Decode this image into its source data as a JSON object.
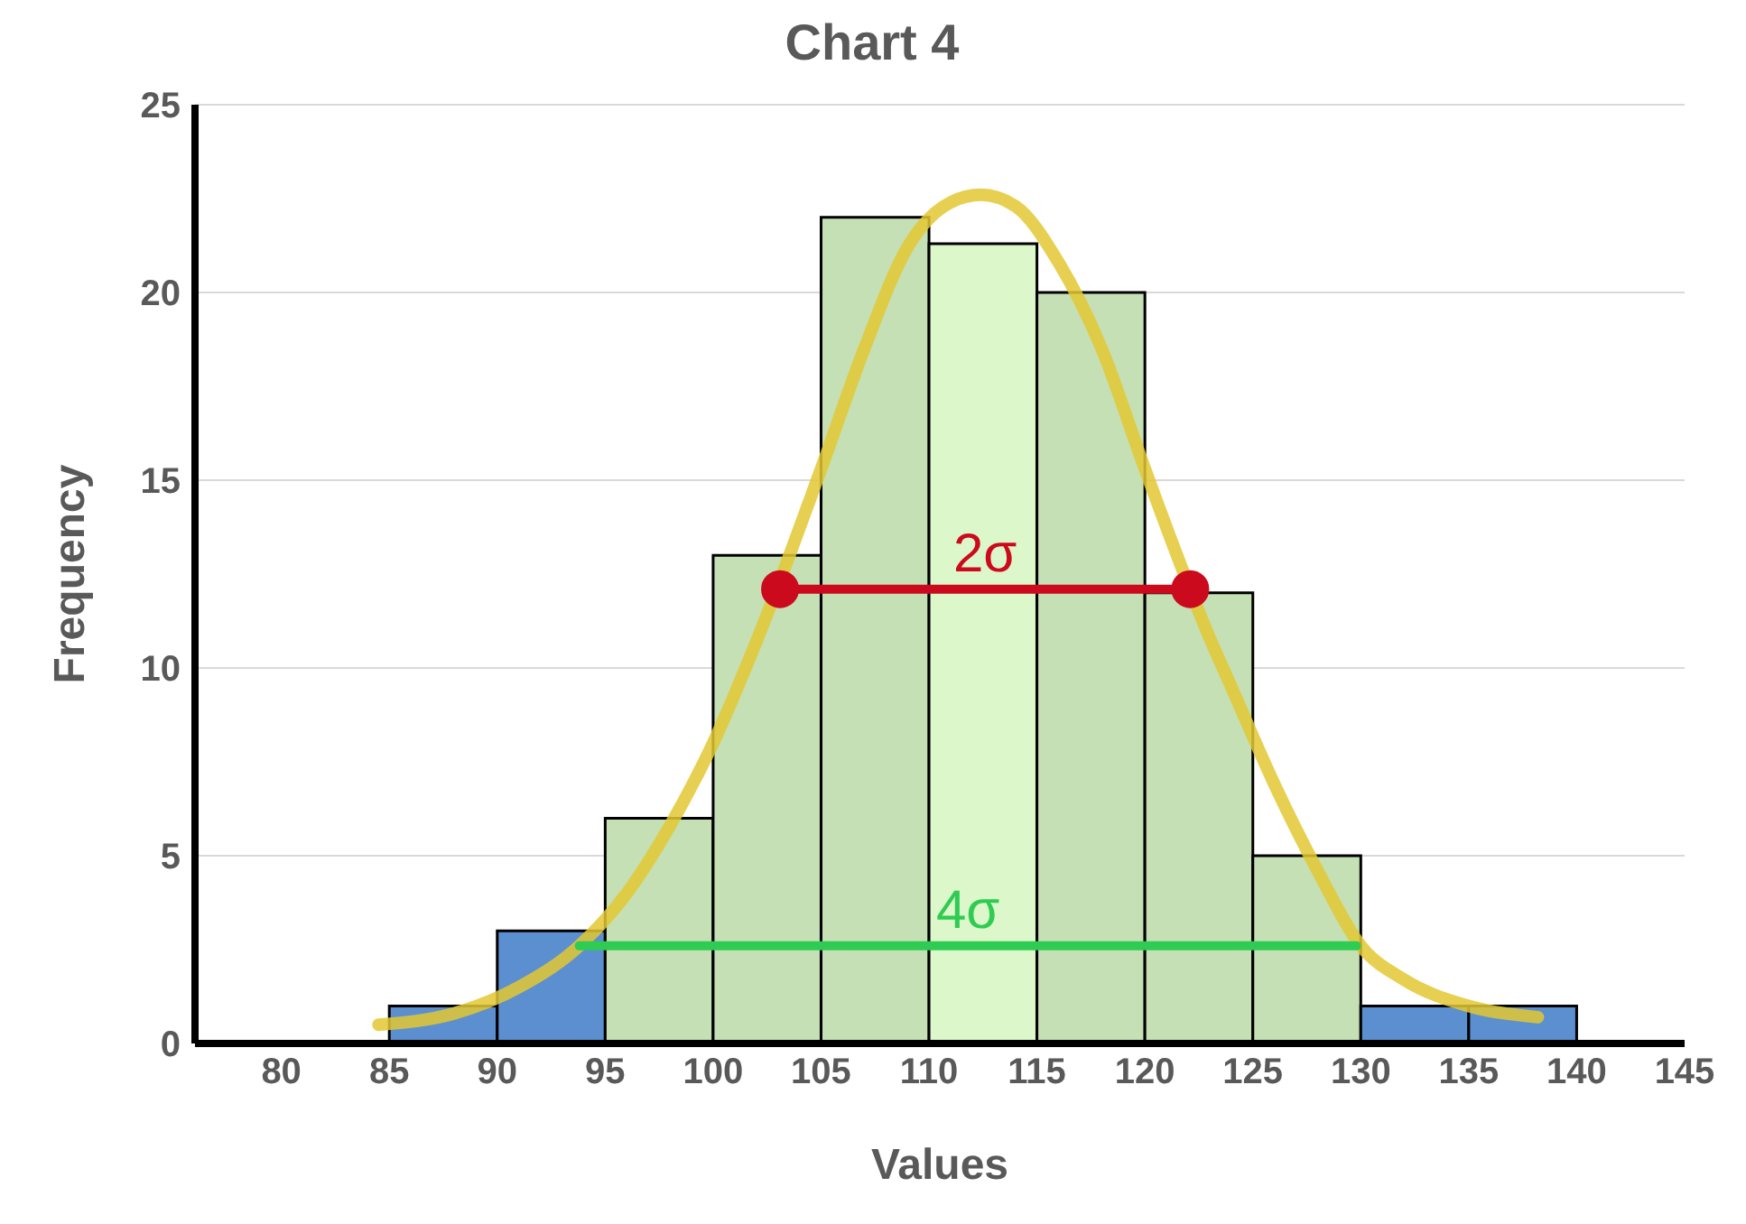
{
  "chart_data": {
    "type": "histogram",
    "title": "Chart 4",
    "xlabel": "Values",
    "ylabel": "Frequency",
    "bins": [
      85,
      90,
      95,
      100,
      105,
      110,
      115,
      120,
      125,
      130,
      135,
      140
    ],
    "values": [
      1,
      3,
      6,
      13,
      22,
      21.3,
      20,
      12,
      5,
      1,
      1
    ],
    "colors": [
      "#5b8fd0",
      "#5b8fd0",
      "#c5e0b4",
      "#c5e0b4",
      "#c5e0b4",
      "#dcf7c9",
      "#c5e0b4",
      "#c5e0b4",
      "#c5e0b4",
      "#5b8fd0",
      "#5b8fd0"
    ],
    "series": [
      {
        "type": "line",
        "color": "#e3c832",
        "x": [
          84.5,
          88,
          91,
          93.8,
          96,
          98,
          100,
          102,
          105,
          107,
          109,
          111,
          112.4,
          114,
          116,
          118,
          120,
          123,
          124,
          126,
          128,
          130,
          132,
          135,
          138.2
        ],
        "values": [
          0.5,
          0.8,
          1.5,
          2.6,
          4,
          5.8,
          8,
          10.7,
          15.3,
          18.5,
          21.2,
          22.4,
          22.6,
          22.3,
          20.8,
          18.5,
          15.3,
          10.8,
          9.5,
          6.9,
          4.6,
          2.6,
          1.7,
          1,
          0.7
        ]
      },
      {
        "type": "line",
        "name": "2σ",
        "color": "#cc0a1e",
        "marker": "circle",
        "x": [
          103.1,
          122.1
        ],
        "values": [
          12.1,
          12.1
        ]
      },
      {
        "type": "line",
        "name": "4σ",
        "color": "#2ecc52",
        "marker": "none",
        "x": [
          93.8,
          129.8
        ],
        "values": [
          2.6,
          2.6
        ]
      }
    ],
    "xlim": [
      76,
      145
    ],
    "xticks": [
      80,
      85,
      90,
      95,
      100,
      105,
      110,
      115,
      120,
      125,
      130,
      135,
      140,
      145
    ],
    "ylim": [
      0,
      25
    ],
    "yticks": [
      0,
      5,
      10,
      15,
      20,
      25
    ],
    "grid": "y"
  }
}
